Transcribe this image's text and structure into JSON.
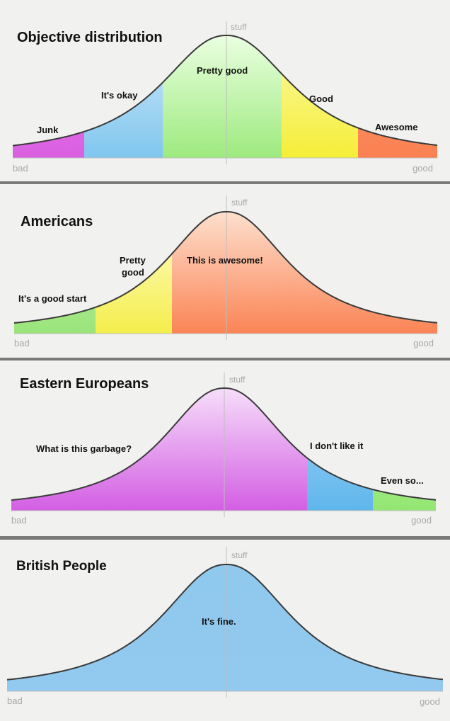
{
  "colors": {
    "background": "#f1f1ef",
    "curve": "#3a3a3a",
    "axis": "#bdbdbd",
    "separator": "#7a7a7a"
  },
  "stuff_label": "stuff",
  "bad_label": "bad",
  "good_label": "good",
  "panels": [
    {
      "title": "Objective distribution",
      "segments": [
        {
          "label": "Junk",
          "color_top": "#ee7ff0",
          "color_bottom": "#d95fe0"
        },
        {
          "label": "It's okay",
          "color_top": "#cfe9f9",
          "color_bottom": "#80c6ee"
        },
        {
          "label": "Pretty good",
          "color_top": "#eaffe0",
          "color_bottom": "#9dea7e"
        },
        {
          "label": "Good",
          "color_top": "#fbf9a8",
          "color_bottom": "#f5ee38"
        },
        {
          "label": "Awesome",
          "color_top": "#fca07e",
          "color_bottom": "#fa8050"
        }
      ]
    },
    {
      "title": "Americans",
      "segments": [
        {
          "label": "It's a good start",
          "color_top": "#c8f3b0",
          "color_bottom": "#9ae47a"
        },
        {
          "label": "Pretty good",
          "color_top": "#fffccd",
          "color_bottom": "#f4ee4c"
        },
        {
          "label": "This is awesome!",
          "color_top": "#fddfcd",
          "color_bottom": "#fb8455"
        }
      ]
    },
    {
      "title": "Eastern Europeans",
      "segments": [
        {
          "label": "What is this garbage?",
          "color_top": "#f6defa",
          "color_bottom": "#d35ee3"
        },
        {
          "label": "I don't like it",
          "color_top": "#a6d5f5",
          "color_bottom": "#5fb6ec"
        },
        {
          "label": "Even so...",
          "color_top": "#bdf5a6",
          "color_bottom": "#93e673"
        }
      ]
    },
    {
      "title": "British People",
      "segments": [
        {
          "label": "It's fine.",
          "color_top": "#90c9ee",
          "color_bottom": "#92c9ee"
        }
      ]
    }
  ]
}
